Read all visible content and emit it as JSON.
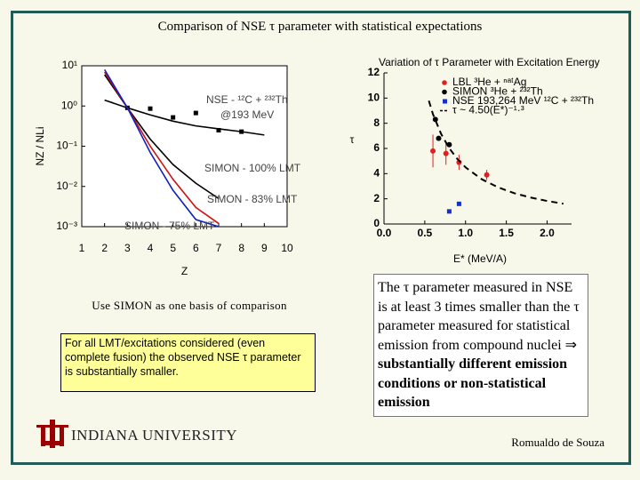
{
  "title": "Comparison of NSE τ parameter with statistical expectations",
  "chart_data": [
    {
      "type": "line",
      "log_y": true,
      "xlabel": "Z",
      "ylabel": "NZ / NLi",
      "legend": "inline",
      "xlim": [
        1,
        10
      ],
      "xticks": [
        1,
        2,
        3,
        4,
        5,
        6,
        7,
        8,
        9,
        10
      ],
      "ylim": [
        0.001,
        10
      ],
      "yticks": [
        {
          "value": 0.001,
          "label": "10⁻³"
        },
        {
          "value": 0.01,
          "label": "10⁻²"
        },
        {
          "value": 0.1,
          "label": "10⁻¹"
        },
        {
          "value": 1,
          "label": "10⁰"
        },
        {
          "value": 10,
          "label": "10¹"
        }
      ],
      "annotations": [
        "@193 MeV"
      ],
      "series": [
        {
          "name": "NSE - ¹²C + ²³²Th",
          "color": "#000000",
          "style": "line",
          "x": [
            2,
            3,
            4,
            5,
            6,
            7,
            8,
            9
          ],
          "values": [
            1.4,
            0.9,
            0.6,
            0.42,
            0.32,
            0.27,
            0.23,
            0.19
          ]
        },
        {
          "color": "#000000",
          "style": "square",
          "x": [
            3,
            4,
            5,
            6,
            7,
            8
          ],
          "values": [
            0.9,
            0.86,
            0.52,
            0.67,
            0.25,
            0.23
          ]
        },
        {
          "name": "SIMON - 100% LMT",
          "color": "#000000",
          "style": "line",
          "x": [
            2,
            3,
            4,
            5,
            6,
            7
          ],
          "values": [
            6,
            0.9,
            0.15,
            0.035,
            0.012,
            0.005
          ]
        },
        {
          "name": "SIMON - 83% LMT",
          "color": "#d01010",
          "style": "line",
          "x": [
            2,
            3,
            4,
            5,
            6,
            7
          ],
          "values": [
            7,
            0.9,
            0.1,
            0.015,
            0.003,
            0.0012
          ]
        },
        {
          "name": "SIMON - 75% LMT",
          "color": "#1020c0",
          "style": "line",
          "x": [
            2,
            3,
            4,
            5,
            6,
            7
          ],
          "values": [
            8,
            0.9,
            0.07,
            0.008,
            0.0015,
            0.001
          ]
        }
      ]
    },
    {
      "type": "scatter",
      "title": "Variation of τ Parameter with Excitation Energy",
      "xlabel": "E* (MeV/A)",
      "ylabel": "τ",
      "legend": "upper-right",
      "xlim": [
        0,
        2.3
      ],
      "xticks": [
        {
          "value": 0,
          "label": "0.0"
        },
        {
          "value": 0.5,
          "label": "0.5"
        },
        {
          "value": 1,
          "label": "1.0"
        },
        {
          "value": 1.5,
          "label": "1.5"
        },
        {
          "value": 2,
          "label": "2.0"
        }
      ],
      "ylim": [
        0,
        12
      ],
      "yticks": [
        0,
        2,
        4,
        6,
        8,
        10,
        12
      ],
      "series": [
        {
          "name": "LBL ³He + ⁿᵃᵗAg",
          "color": "#e02020",
          "style": "circle",
          "x": [
            0.6,
            0.76,
            0.92,
            1.26
          ],
          "values": [
            5.8,
            5.6,
            4.9,
            3.9
          ],
          "errors": [
            1.3,
            0.9,
            0.6,
            0.4
          ]
        },
        {
          "name": "SIMON ³He + ²³²Th",
          "color": "#000000",
          "style": "circle",
          "x": [
            0.63,
            0.67,
            0.8
          ],
          "values": [
            8.3,
            6.8,
            6.3
          ]
        },
        {
          "name": "NSE 193,264 MeV ¹²C + ²³²Th",
          "color": "#1030d0",
          "style": "square",
          "x": [
            0.8,
            0.92
          ],
          "values": [
            1.0,
            1.6
          ]
        },
        {
          "name": "τ ~ 4.50(E*)⁻¹·³",
          "color": "#000000",
          "style": "dashed",
          "x": [
            0.55,
            0.6,
            0.7,
            0.8,
            0.9,
            1.0,
            1.2,
            1.4,
            1.6,
            1.8,
            2.0,
            2.2
          ],
          "values": [
            9.79,
            8.73,
            7.16,
            6.02,
            5.16,
            4.5,
            3.55,
            2.91,
            2.44,
            2.1,
            1.83,
            1.61
          ]
        }
      ]
    }
  ],
  "left_caption": "Use SIMON as one basis of comparison",
  "left_box": "For all LMT/excitations considered (even complete fusion) the observed NSE τ parameter is substantially smaller.",
  "right_box": {
    "text": "The τ parameter measured in NSE is at least 3 times smaller than the τ parameter  measured for statistical emission from compound nuclei ⇒ ",
    "bold": "substantially different emission conditions or non-statistical emission"
  },
  "footer": {
    "institution": "INDIANA UNIVERSITY",
    "author": "Romualdo de Souza"
  }
}
